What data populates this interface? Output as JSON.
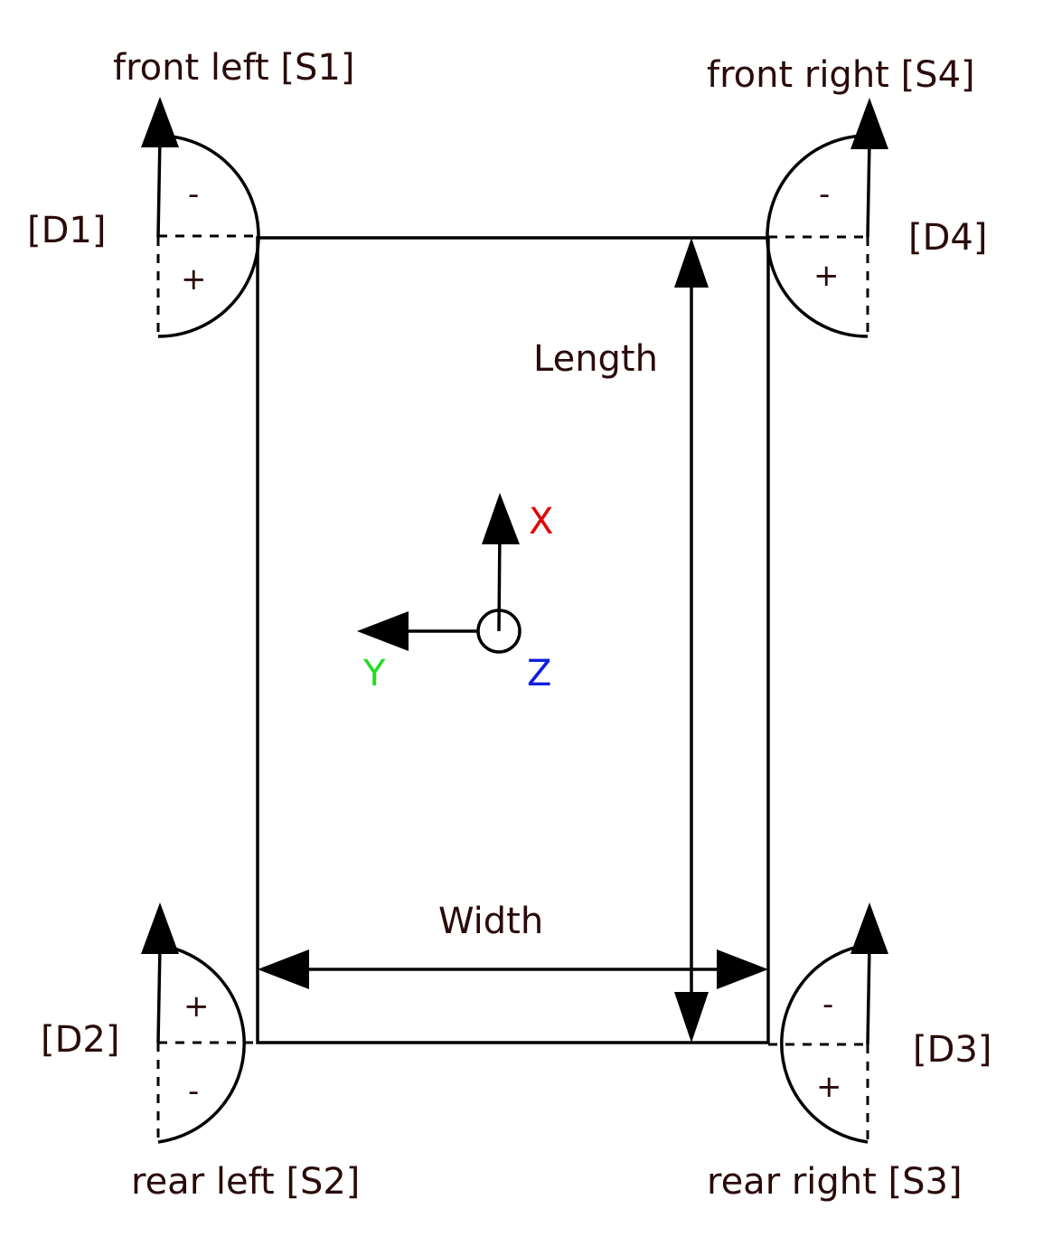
{
  "corners": {
    "front_left": {
      "label": "front left [S1]",
      "steer": "[D1]",
      "upper_sign": "-",
      "lower_sign": "+"
    },
    "front_right": {
      "label": "front right [S4]",
      "steer": "[D4]",
      "upper_sign": "-",
      "lower_sign": "+"
    },
    "rear_left": {
      "label": "rear left [S2]",
      "steer": "[D2]",
      "upper_sign": "+",
      "lower_sign": "-"
    },
    "rear_right": {
      "label": "rear right [S3]",
      "steer": "[D3]",
      "upper_sign": "-",
      "lower_sign": "+"
    }
  },
  "dimensions": {
    "length": "Length",
    "width": "Width"
  },
  "axes": {
    "x": {
      "label": "X",
      "color": "#e00000"
    },
    "y": {
      "label": "Y",
      "color": "#22dd22"
    },
    "z": {
      "label": "Z",
      "color": "#1020e0"
    }
  }
}
